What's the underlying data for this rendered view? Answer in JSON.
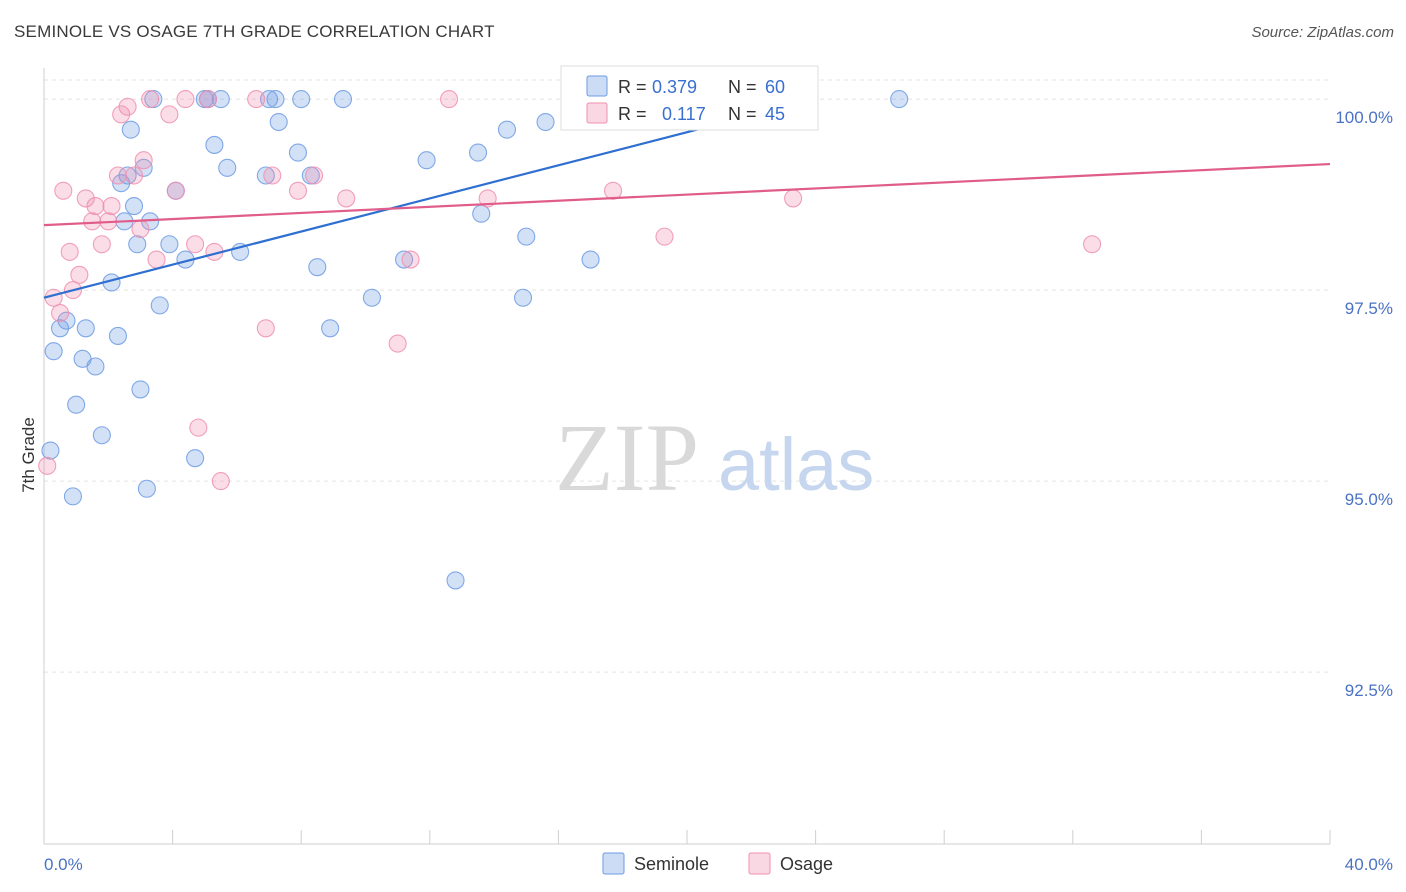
{
  "header": {
    "title": "SEMINOLE VS OSAGE 7TH GRADE CORRELATION CHART",
    "source": "Source: ZipAtlas.com"
  },
  "watermark": {
    "zip": "ZIP",
    "atlas": "atlas"
  },
  "legend": {
    "r_label": "R =",
    "n_label": "N =",
    "rows": [
      {
        "name": "Seminole",
        "r": "0.379",
        "n": "60",
        "color": "#6d9be3"
      },
      {
        "name": "Osage",
        "r": "0.117",
        "n": "45",
        "color": "#ef8fb0"
      }
    ]
  },
  "bottom_legend": [
    "Seminole",
    "Osage"
  ],
  "chart_data": {
    "type": "scatter",
    "title": "SEMINOLE VS OSAGE 7TH GRADE CORRELATION CHART",
    "xlabel": "",
    "ylabel": "7th Grade",
    "xlim": [
      0,
      40
    ],
    "ylim": [
      90.25,
      100.25
    ],
    "x_tick_labels": [
      {
        "value": 0,
        "label": "0.0%"
      },
      {
        "value": 40,
        "label": "40.0%"
      }
    ],
    "x_minor_ticks": [
      0,
      4,
      8,
      12,
      16,
      20,
      24,
      28,
      32,
      36,
      40
    ],
    "y_ticks": [
      {
        "value": 100.0,
        "label": "100.0%"
      },
      {
        "value": 97.5,
        "label": "97.5%"
      },
      {
        "value": 95.0,
        "label": "95.0%"
      },
      {
        "value": 92.5,
        "label": "92.5%"
      }
    ],
    "grid": true,
    "legend_position": "top-center",
    "series": [
      {
        "name": "Seminole",
        "color": "#6d9be3",
        "line_color": "#2f6fd1",
        "trend": {
          "x": [
            0,
            24
          ],
          "y": [
            97.4,
            100.0
          ]
        },
        "points": [
          [
            0.2,
            95.4
          ],
          [
            0.3,
            96.7
          ],
          [
            0.5,
            97.0
          ],
          [
            0.7,
            97.1
          ],
          [
            0.9,
            94.8
          ],
          [
            1.0,
            96.0
          ],
          [
            1.2,
            96.6
          ],
          [
            1.3,
            97.0
          ],
          [
            1.6,
            96.5
          ],
          [
            1.8,
            95.6
          ],
          [
            2.1,
            97.6
          ],
          [
            2.3,
            96.9
          ],
          [
            2.4,
            98.9
          ],
          [
            2.5,
            98.4
          ],
          [
            2.6,
            99.0
          ],
          [
            2.7,
            99.6
          ],
          [
            2.8,
            98.6
          ],
          [
            2.9,
            98.1
          ],
          [
            3.0,
            96.2
          ],
          [
            3.1,
            99.1
          ],
          [
            3.2,
            94.9
          ],
          [
            3.3,
            98.4
          ],
          [
            3.4,
            100.0
          ],
          [
            3.6,
            97.3
          ],
          [
            3.9,
            98.1
          ],
          [
            4.1,
            98.8
          ],
          [
            4.4,
            97.9
          ],
          [
            4.7,
            95.3
          ],
          [
            5.0,
            100.0
          ],
          [
            5.1,
            100.0
          ],
          [
            5.3,
            99.4
          ],
          [
            5.5,
            100.0
          ],
          [
            5.7,
            99.1
          ],
          [
            6.1,
            98.0
          ],
          [
            6.9,
            99.0
          ],
          [
            7.0,
            100.0
          ],
          [
            7.2,
            100.0
          ],
          [
            7.3,
            99.7
          ],
          [
            7.9,
            99.3
          ],
          [
            8.0,
            100.0
          ],
          [
            8.3,
            99.0
          ],
          [
            8.5,
            97.8
          ],
          [
            8.9,
            97.0
          ],
          [
            9.3,
            100.0
          ],
          [
            10.2,
            97.4
          ],
          [
            11.2,
            97.9
          ],
          [
            11.9,
            99.2
          ],
          [
            12.8,
            93.7
          ],
          [
            13.5,
            99.3
          ],
          [
            13.6,
            98.5
          ],
          [
            14.4,
            99.6
          ],
          [
            14.9,
            97.4
          ],
          [
            15.0,
            98.2
          ],
          [
            15.6,
            99.7
          ],
          [
            17.0,
            97.9
          ],
          [
            18.0,
            100.0
          ],
          [
            20.0,
            100.0
          ],
          [
            21.0,
            100.0
          ],
          [
            22.0,
            100.0
          ],
          [
            26.6,
            100.0
          ]
        ]
      },
      {
        "name": "Osage",
        "color": "#ef8fb0",
        "line_color": "#e05c8a",
        "trend": {
          "x": [
            0,
            40
          ],
          "y": [
            98.35,
            99.15
          ]
        },
        "points": [
          [
            0.1,
            95.2
          ],
          [
            0.3,
            97.4
          ],
          [
            0.5,
            97.2
          ],
          [
            0.6,
            98.8
          ],
          [
            0.8,
            98.0
          ],
          [
            0.9,
            97.5
          ],
          [
            1.1,
            97.7
          ],
          [
            1.3,
            98.7
          ],
          [
            1.5,
            98.4
          ],
          [
            1.6,
            98.6
          ],
          [
            1.8,
            98.1
          ],
          [
            2.0,
            98.4
          ],
          [
            2.1,
            98.6
          ],
          [
            2.3,
            99.0
          ],
          [
            2.4,
            99.8
          ],
          [
            2.6,
            99.9
          ],
          [
            2.8,
            99.0
          ],
          [
            3.0,
            98.3
          ],
          [
            3.1,
            99.2
          ],
          [
            3.3,
            100.0
          ],
          [
            3.5,
            97.9
          ],
          [
            3.9,
            99.8
          ],
          [
            4.1,
            98.8
          ],
          [
            4.4,
            100.0
          ],
          [
            4.7,
            98.1
          ],
          [
            4.8,
            95.7
          ],
          [
            5.1,
            100.0
          ],
          [
            5.3,
            98.0
          ],
          [
            5.5,
            95.0
          ],
          [
            6.6,
            100.0
          ],
          [
            6.9,
            97.0
          ],
          [
            7.1,
            99.0
          ],
          [
            7.9,
            98.8
          ],
          [
            8.4,
            99.0
          ],
          [
            9.4,
            98.7
          ],
          [
            11.0,
            96.8
          ],
          [
            11.4,
            97.9
          ],
          [
            12.6,
            100.0
          ],
          [
            13.8,
            98.7
          ],
          [
            17.7,
            98.8
          ],
          [
            18.0,
            100.0
          ],
          [
            19.3,
            98.2
          ],
          [
            22.3,
            100.0
          ],
          [
            23.3,
            98.7
          ],
          [
            32.6,
            98.1
          ]
        ]
      }
    ]
  }
}
